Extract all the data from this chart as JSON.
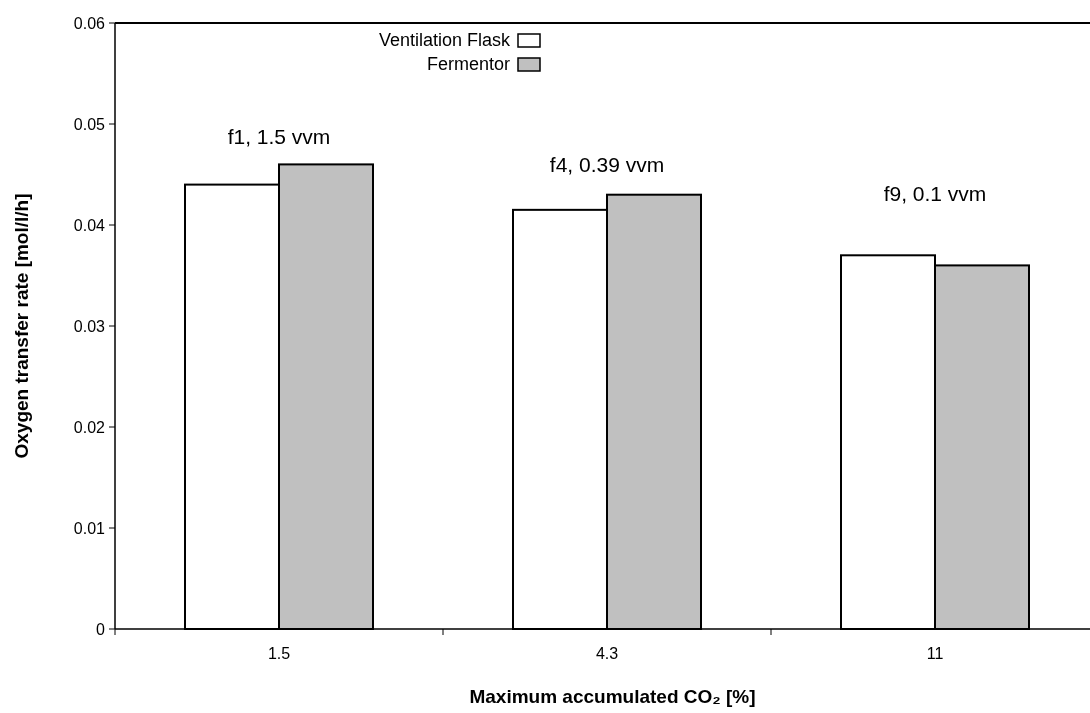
{
  "chart_data": {
    "type": "bar",
    "xlabel": "Maximum accumulated CO₂  [%]",
    "ylabel": "Oxygen transfer rate  [mol/l/h]",
    "categories": [
      "1.5",
      "4.3",
      "11"
    ],
    "series": [
      {
        "name": "Ventilation Flask",
        "color": "#ffffff",
        "values": [
          0.044,
          0.0415,
          0.037
        ]
      },
      {
        "name": "Fermentor",
        "color": "#c0c0c0",
        "values": [
          0.046,
          0.043,
          0.036
        ]
      }
    ],
    "ylim": [
      0,
      0.06
    ],
    "yticks": [
      0,
      0.01,
      0.02,
      0.03,
      0.04,
      0.05,
      0.06
    ],
    "legend": "top",
    "annotations": [
      "f1, 1.5 vvm",
      "f4, 0.39 vvm",
      "f9, 0.1 vvm"
    ]
  }
}
